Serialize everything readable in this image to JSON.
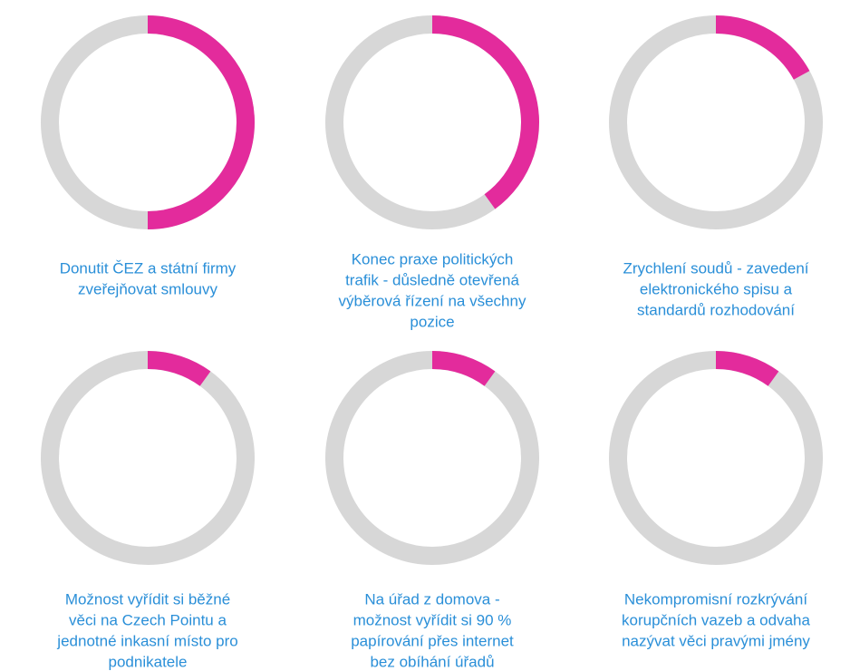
{
  "chart_data": [
    {
      "type": "donut",
      "title": [
        "Donutit ČEZ a státní firmy",
        "zveřejňovat smlouvy"
      ],
      "values": [
        50
      ],
      "color": "#e32b9c",
      "track_color": "#d7d7d7"
    },
    {
      "type": "donut",
      "title": [
        "Konec praxe politických",
        "trafik - důsledně otevřená",
        "výběrová řízení na všechny",
        "pozice"
      ],
      "values": [
        40
      ],
      "color": "#e32b9c",
      "track_color": "#d7d7d7"
    },
    {
      "type": "donut",
      "title": [
        "Zrychlení soudů - zavedení",
        "elektronického spisu a",
        "standardů rozhodování"
      ],
      "values": [
        17
      ],
      "color": "#e32b9c",
      "track_color": "#d7d7d7"
    },
    {
      "type": "donut",
      "title": [
        "Možnost vyřídit si běžné",
        "věci na Czech Pointu a",
        "jednotné inkasní místo pro",
        "podnikatele"
      ],
      "values": [
        10
      ],
      "color": "#e32b9c",
      "track_color": "#d7d7d7"
    },
    {
      "type": "donut",
      "title": [
        "Na úřad z domova -",
        "možnost vyřídit si 90 %",
        "papírování přes internet",
        "bez obíhání úřadů"
      ],
      "values": [
        10
      ],
      "color": "#e32b9c",
      "track_color": "#d7d7d7"
    },
    {
      "type": "donut",
      "title": [
        "Nekompromisní rozkrývání",
        "korupčních vazeb a odvaha",
        "nazývat věci pravými jmény"
      ],
      "values": [
        10
      ],
      "color": "#e32b9c",
      "track_color": "#d7d7d7"
    }
  ]
}
